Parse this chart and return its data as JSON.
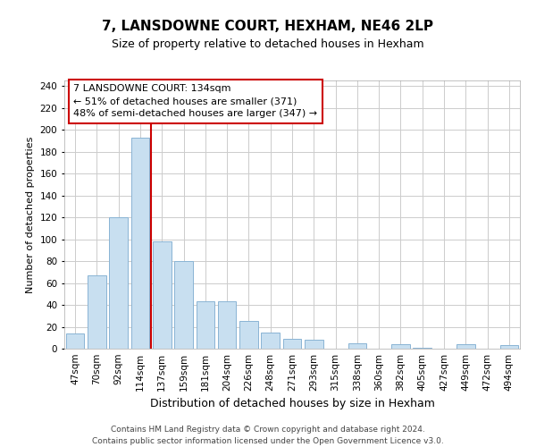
{
  "title": "7, LANSDOWNE COURT, HEXHAM, NE46 2LP",
  "subtitle": "Size of property relative to detached houses in Hexham",
  "xlabel": "Distribution of detached houses by size in Hexham",
  "ylabel": "Number of detached properties",
  "categories": [
    "47sqm",
    "70sqm",
    "92sqm",
    "114sqm",
    "137sqm",
    "159sqm",
    "181sqm",
    "204sqm",
    "226sqm",
    "248sqm",
    "271sqm",
    "293sqm",
    "315sqm",
    "338sqm",
    "360sqm",
    "382sqm",
    "405sqm",
    "427sqm",
    "449sqm",
    "472sqm",
    "494sqm"
  ],
  "values": [
    14,
    67,
    120,
    193,
    98,
    80,
    43,
    43,
    25,
    15,
    9,
    8,
    0,
    5,
    0,
    4,
    1,
    0,
    4,
    0,
    3
  ],
  "bar_color": "#c8dff0",
  "bar_edge_color": "#8ab4d4",
  "marker_line_color": "#cc0000",
  "annotation_line1": "7 LANSDOWNE COURT: 134sqm",
  "annotation_line2": "← 51% of detached houses are smaller (371)",
  "annotation_line3": "48% of semi-detached houses are larger (347) →",
  "annotation_box_edge_color": "#cc0000",
  "ylim": [
    0,
    245
  ],
  "yticks": [
    0,
    20,
    40,
    60,
    80,
    100,
    120,
    140,
    160,
    180,
    200,
    220,
    240
  ],
  "footer_line1": "Contains HM Land Registry data © Crown copyright and database right 2024.",
  "footer_line2": "Contains public sector information licensed under the Open Government Licence v3.0.",
  "background_color": "#ffffff",
  "grid_color": "#cccccc",
  "title_fontsize": 11,
  "subtitle_fontsize": 9,
  "ylabel_fontsize": 8,
  "xlabel_fontsize": 9,
  "tick_fontsize": 7.5,
  "annotation_fontsize": 8,
  "footer_fontsize": 6.5
}
